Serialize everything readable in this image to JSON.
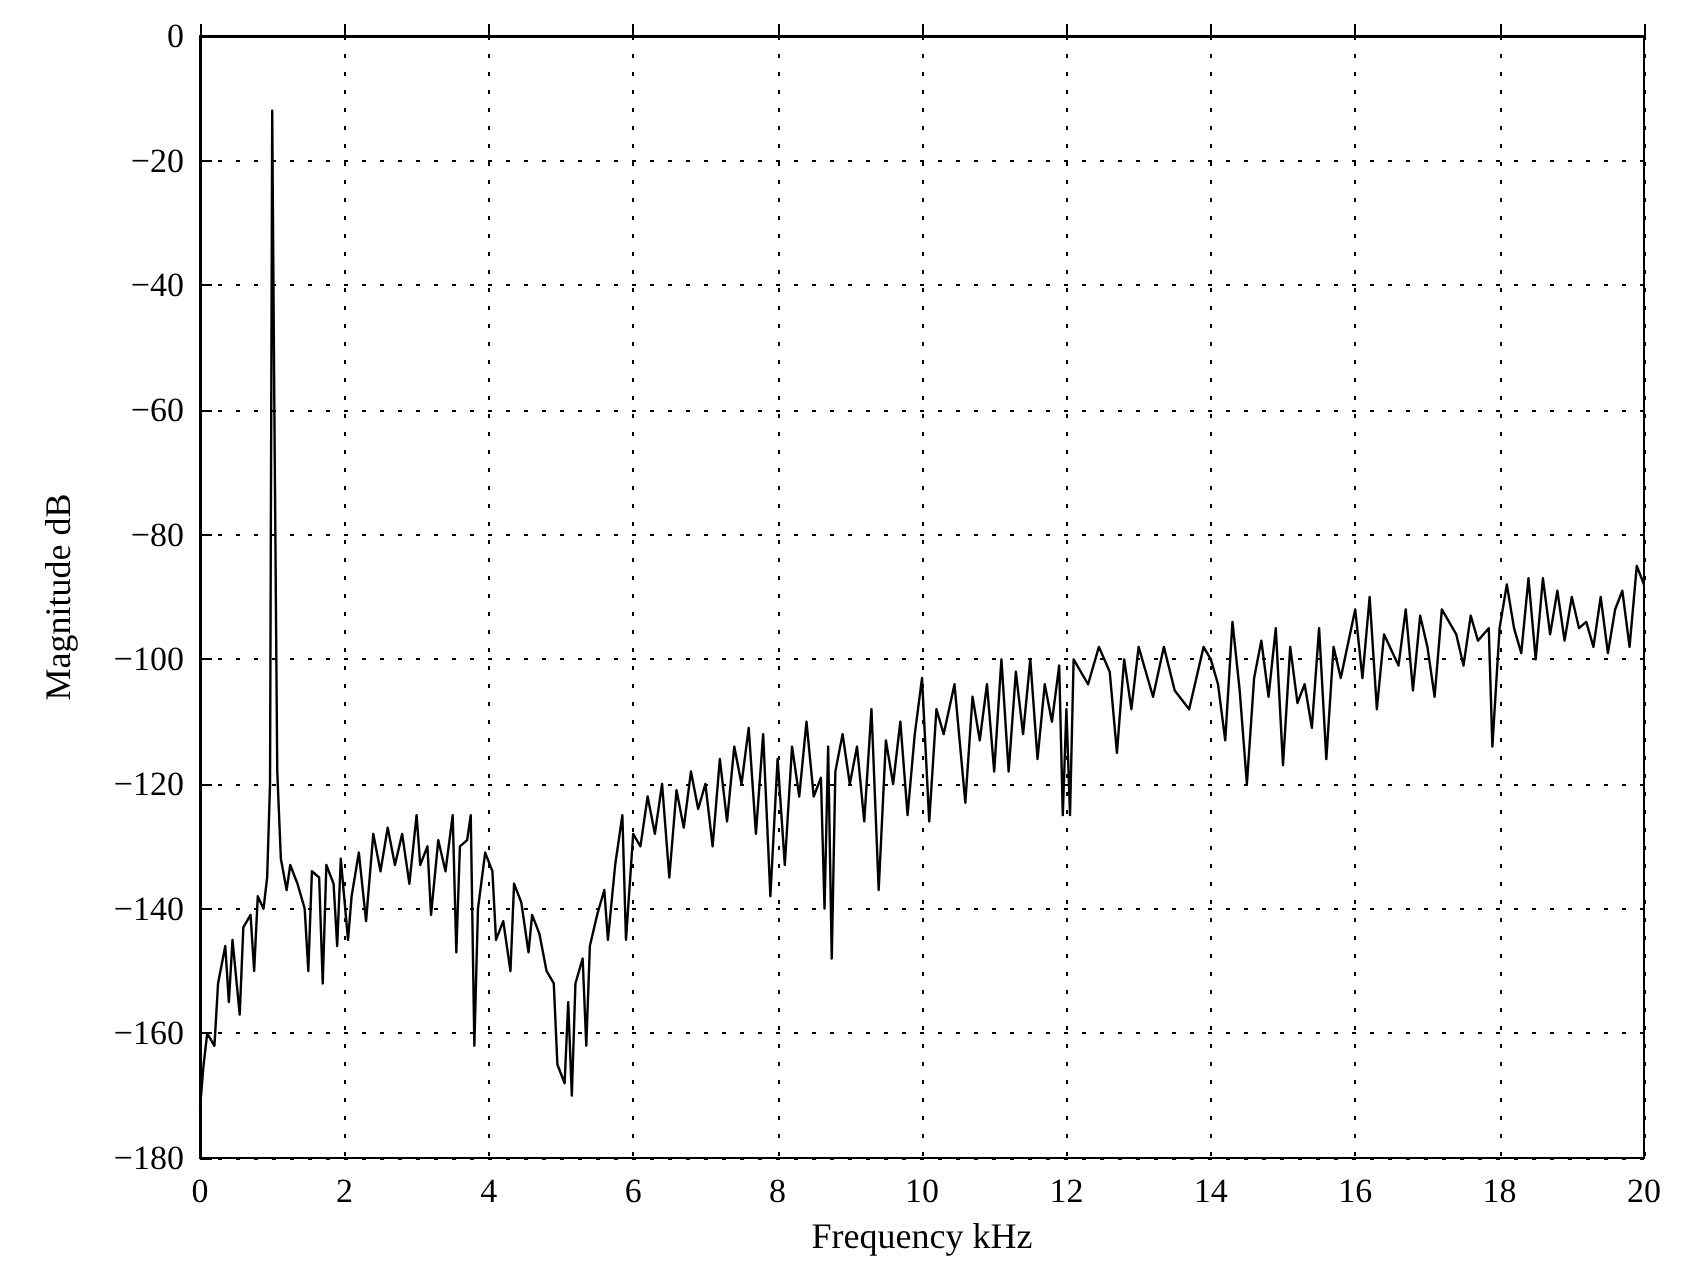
{
  "chart_data": {
    "type": "line",
    "xlabel": "Frequency kHz",
    "ylabel": "Magnitude dB",
    "xlim": [
      0,
      20
    ],
    "xticks": [
      0,
      2,
      4,
      6,
      8,
      10,
      12,
      14,
      16,
      18,
      20
    ],
    "ylim": [
      -180,
      0
    ],
    "yticks": [
      -180,
      -160,
      -140,
      -120,
      -100,
      -80,
      -60,
      -40,
      -20,
      0
    ],
    "grid": true,
    "marker": "none",
    "line_style": "solid",
    "series": [
      {
        "color": "#000000",
        "x": [
          0,
          0.05,
          0.1,
          0.2,
          0.25,
          0.35,
          0.4,
          0.45,
          0.55,
          0.6,
          0.7,
          0.75,
          0.8,
          0.88,
          0.93,
          0.97,
          1.0,
          1.03,
          1.07,
          1.12,
          1.2,
          1.25,
          1.35,
          1.45,
          1.5,
          1.55,
          1.65,
          1.7,
          1.75,
          1.85,
          1.9,
          1.95,
          2.05,
          2.1,
          2.2,
          2.3,
          2.4,
          2.5,
          2.6,
          2.7,
          2.8,
          2.9,
          3.0,
          3.05,
          3.15,
          3.2,
          3.3,
          3.4,
          3.5,
          3.55,
          3.6,
          3.7,
          3.75,
          3.8,
          3.85,
          3.95,
          4.05,
          4.1,
          4.2,
          4.3,
          4.35,
          4.45,
          4.55,
          4.6,
          4.7,
          4.8,
          4.9,
          4.95,
          5.05,
          5.1,
          5.15,
          5.2,
          5.3,
          5.35,
          5.4,
          5.5,
          5.6,
          5.65,
          5.75,
          5.85,
          5.9,
          6.0,
          6.1,
          6.2,
          6.3,
          6.4,
          6.5,
          6.6,
          6.7,
          6.8,
          6.9,
          7.0,
          7.1,
          7.2,
          7.3,
          7.4,
          7.5,
          7.6,
          7.7,
          7.8,
          7.9,
          8.0,
          8.1,
          8.2,
          8.3,
          8.4,
          8.5,
          8.6,
          8.65,
          8.7,
          8.75,
          8.8,
          8.9,
          9.0,
          9.1,
          9.2,
          9.3,
          9.4,
          9.5,
          9.6,
          9.7,
          9.8,
          9.9,
          10.0,
          10.1,
          10.2,
          10.3,
          10.45,
          10.6,
          10.7,
          10.8,
          10.9,
          11.0,
          11.1,
          11.2,
          11.3,
          11.4,
          11.5,
          11.6,
          11.7,
          11.8,
          11.9,
          11.95,
          12.0,
          12.05,
          12.1,
          12.3,
          12.45,
          12.6,
          12.7,
          12.8,
          12.9,
          13.0,
          13.2,
          13.35,
          13.5,
          13.7,
          13.9,
          14.0,
          14.1,
          14.2,
          14.3,
          14.4,
          14.5,
          14.6,
          14.7,
          14.8,
          14.9,
          15.0,
          15.1,
          15.2,
          15.3,
          15.4,
          15.5,
          15.6,
          15.7,
          15.8,
          16.0,
          16.1,
          16.2,
          16.3,
          16.4,
          16.6,
          16.7,
          16.8,
          16.9,
          17.0,
          17.1,
          17.2,
          17.4,
          17.5,
          17.6,
          17.7,
          17.85,
          17.9,
          18.0,
          18.1,
          18.2,
          18.3,
          18.4,
          18.5,
          18.6,
          18.7,
          18.8,
          18.9,
          19.0,
          19.1,
          19.2,
          19.3,
          19.4,
          19.5,
          19.6,
          19.7,
          19.8,
          19.9,
          20.0
        ],
        "values": [
          -172,
          -165,
          -160,
          -162,
          -152,
          -146,
          -155,
          -145,
          -157,
          -143,
          -141,
          -150,
          -138,
          -140,
          -135,
          -120,
          -12,
          -60,
          -118,
          -132,
          -137,
          -133,
          -136,
          -140,
          -150,
          -134,
          -135,
          -152,
          -133,
          -136,
          -146,
          -132,
          -145,
          -138,
          -131,
          -142,
          -128,
          -134,
          -127,
          -133,
          -128,
          -136,
          -125,
          -133,
          -130,
          -141,
          -129,
          -134,
          -125,
          -147,
          -130,
          -129,
          -125,
          -162,
          -140,
          -131,
          -134,
          -145,
          -142,
          -150,
          -136,
          -139,
          -147,
          -141,
          -144,
          -150,
          -152,
          -165,
          -168,
          -155,
          -170,
          -152,
          -148,
          -162,
          -146,
          -141,
          -137,
          -145,
          -133,
          -125,
          -145,
          -128,
          -130,
          -122,
          -128,
          -120,
          -135,
          -121,
          -127,
          -118,
          -124,
          -120,
          -130,
          -116,
          -126,
          -114,
          -120,
          -111,
          -128,
          -112,
          -138,
          -116,
          -133,
          -114,
          -122,
          -110,
          -122,
          -119,
          -140,
          -114,
          -148,
          -118,
          -112,
          -120,
          -114,
          -126,
          -108,
          -137,
          -113,
          -120,
          -110,
          -125,
          -112,
          -103,
          -126,
          -108,
          -112,
          -104,
          -123,
          -106,
          -113,
          -104,
          -118,
          -100,
          -118,
          -102,
          -112,
          -100,
          -116,
          -104,
          -110,
          -101,
          -125,
          -108,
          -125,
          -100,
          -104,
          -98,
          -102,
          -115,
          -100,
          -108,
          -98,
          -106,
          -98,
          -105,
          -108,
          -98,
          -100,
          -104,
          -113,
          -94,
          -105,
          -120,
          -103,
          -97,
          -106,
          -95,
          -117,
          -98,
          -107,
          -104,
          -111,
          -95,
          -116,
          -98,
          -103,
          -92,
          -103,
          -90,
          -108,
          -96,
          -101,
          -92,
          -105,
          -93,
          -98,
          -106,
          -92,
          -96,
          -101,
          -93,
          -97,
          -95,
          -114,
          -95,
          -88,
          -95,
          -99,
          -87,
          -100,
          -87,
          -96,
          -89,
          -97,
          -90,
          -95,
          -94,
          -98,
          -90,
          -99,
          -92,
          -89,
          -98,
          -85,
          -88
        ]
      }
    ]
  }
}
